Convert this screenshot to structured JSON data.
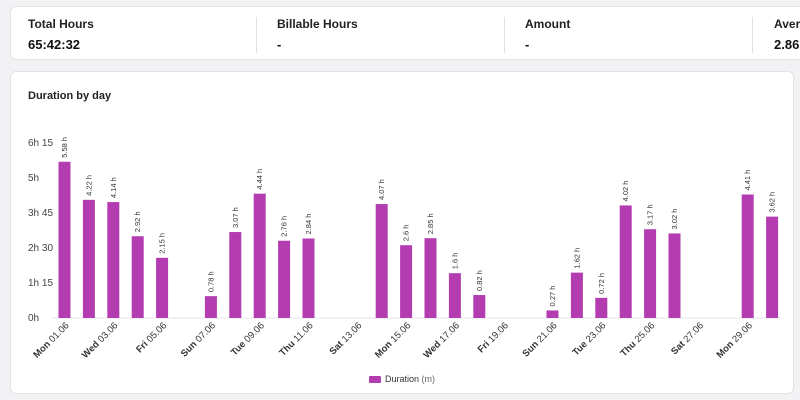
{
  "stats": [
    {
      "label": "Total Hours",
      "value": "65:42:32"
    },
    {
      "label": "Billable Hours",
      "value": "-"
    },
    {
      "label": "Amount",
      "value": "-"
    },
    {
      "label": "Avera",
      "value": "2.86"
    }
  ],
  "chart": {
    "title": "Duration by day",
    "legend_label": "Duration",
    "legend_unit": "(m)",
    "bar_color": "#b33cb0"
  },
  "chart_data": {
    "type": "bar",
    "title": "Duration by day",
    "series": [
      {
        "name": "Duration (m)",
        "color": "#b33cb0"
      }
    ],
    "y_ticks": [
      "0h",
      "1h 15",
      "2h 30",
      "3h 45",
      "5h",
      "6h 15"
    ],
    "ylim_hours": [
      0,
      6.25
    ],
    "grid": false,
    "legend_position": "bottom",
    "x_labels": [
      "Mon 01.06",
      "Wed 03.06",
      "Fri 05.06",
      "Sun 07.06",
      "Tue 09.06",
      "Thu 11.06",
      "Sat 13.06",
      "Mon 15.06",
      "Wed 17.06",
      "Fri 19.06",
      "Sun 21.06",
      "Tue 23.06",
      "Thu 25.06",
      "Sat 27.06",
      "Mon 29.06"
    ],
    "days": [
      {
        "day": 1,
        "value": 5.58,
        "label": "5.58 h"
      },
      {
        "day": 2,
        "value": 4.22,
        "label": "4.22 h"
      },
      {
        "day": 3,
        "value": 4.14,
        "label": "4.14 h"
      },
      {
        "day": 4,
        "value": 2.92,
        "label": "2.92 h"
      },
      {
        "day": 5,
        "value": 2.15,
        "label": "2.15 h"
      },
      {
        "day": 6,
        "value": 0,
        "label": ""
      },
      {
        "day": 7,
        "value": 0.78,
        "label": "0.78 h"
      },
      {
        "day": 8,
        "value": 3.07,
        "label": "3.07 h"
      },
      {
        "day": 9,
        "value": 4.44,
        "label": "4.44 h"
      },
      {
        "day": 10,
        "value": 2.76,
        "label": "2.76 h"
      },
      {
        "day": 11,
        "value": 2.84,
        "label": "2.84 h"
      },
      {
        "day": 12,
        "value": 0,
        "label": ""
      },
      {
        "day": 13,
        "value": 0,
        "label": ""
      },
      {
        "day": 14,
        "value": 4.07,
        "label": "4.07 h"
      },
      {
        "day": 15,
        "value": 2.6,
        "label": "2.6 h"
      },
      {
        "day": 16,
        "value": 2.85,
        "label": "2.85 h"
      },
      {
        "day": 17,
        "value": 1.6,
        "label": "1.6 h"
      },
      {
        "day": 18,
        "value": 0.82,
        "label": "0.82 h"
      },
      {
        "day": 19,
        "value": 0,
        "label": ""
      },
      {
        "day": 20,
        "value": 0,
        "label": ""
      },
      {
        "day": 21,
        "value": 0.27,
        "label": "0.27 h"
      },
      {
        "day": 22,
        "value": 1.62,
        "label": "1.62 h"
      },
      {
        "day": 23,
        "value": 0.72,
        "label": "0.72 h"
      },
      {
        "day": 24,
        "value": 4.02,
        "label": "4.02 h"
      },
      {
        "day": 25,
        "value": 3.17,
        "label": "3.17 h"
      },
      {
        "day": 26,
        "value": 3.02,
        "label": "3.02 h"
      },
      {
        "day": 27,
        "value": 0,
        "label": ""
      },
      {
        "day": 28,
        "value": 0,
        "label": ""
      },
      {
        "day": 29,
        "value": 4.41,
        "label": "4.41 h"
      },
      {
        "day": 30,
        "value": 3.62,
        "label": "3.62 h"
      }
    ]
  }
}
